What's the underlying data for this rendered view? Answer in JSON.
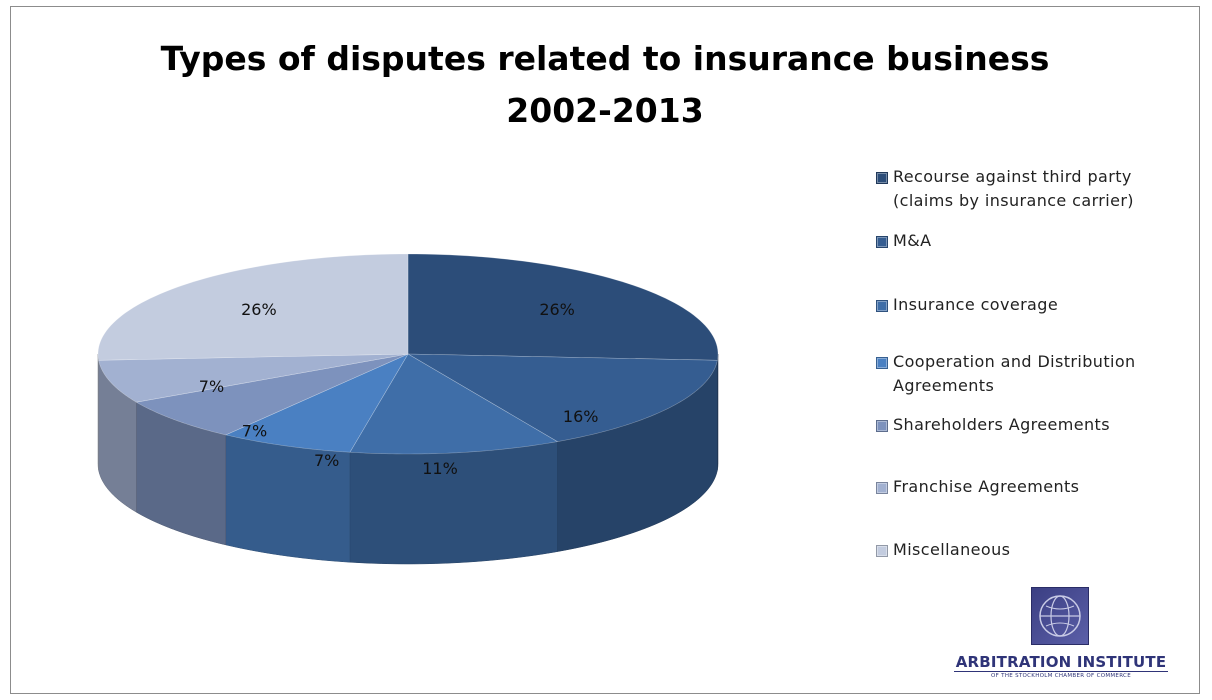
{
  "chart_data": {
    "type": "pie",
    "title_line1": "Types of disputes related to insurance business",
    "title_line2": "2002-2013",
    "categories": [
      "Recourse against third party (claims by insurance carrier)",
      "M&A",
      "Insurance coverage",
      "Cooperation and Distribution Agreements",
      "Shareholders Agreements",
      "Franchise Agreements",
      "Miscellaneous"
    ],
    "values": [
      26,
      16,
      11,
      7,
      7,
      7,
      26
    ],
    "value_labels": [
      "26%",
      "16%",
      "11%",
      "7%",
      "7%",
      "7%",
      "26%"
    ],
    "colors": [
      "#2c4d79",
      "#355d91",
      "#3f6ea8",
      "#4a80c2",
      "#7d92bd",
      "#a2b1d1",
      "#c3ccdf"
    ],
    "legend_position": "right"
  },
  "legend": {
    "items": [
      {
        "label": "Recourse against third party\n(claims by insurance carrier)"
      },
      {
        "label": "M&A"
      },
      {
        "label": "Insurance coverage"
      },
      {
        "label": "Cooperation and Distribution\nAgreements"
      },
      {
        "label": "Shareholders Agreements"
      },
      {
        "label": "Franchise Agreements"
      },
      {
        "label": "Miscellaneous"
      }
    ]
  },
  "logo": {
    "name": "ARBITRATION INSTITUTE",
    "subtitle": "OF THE STOCKHOLM CHAMBER OF COMMERCE",
    "icon": "globe-icon"
  }
}
